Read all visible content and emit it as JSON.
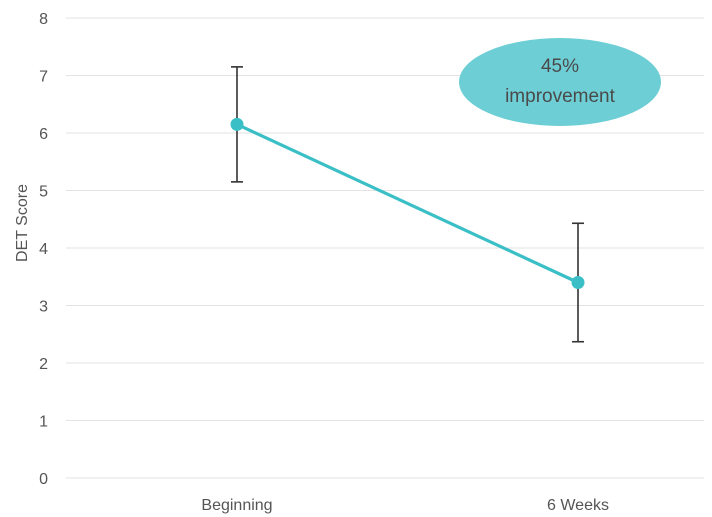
{
  "chart_data": {
    "type": "line",
    "categories": [
      "Beginning",
      "6 Weeks"
    ],
    "series": [
      {
        "values": [
          6.15,
          3.4
        ],
        "error": [
          1.0,
          1.03
        ],
        "color": "#3bbfc6"
      }
    ],
    "xlabel": "",
    "ylabel": "DET Score",
    "ylim": [
      0,
      8
    ],
    "yticks": [
      0,
      1,
      2,
      3,
      4,
      5,
      6,
      7,
      8
    ],
    "grid": true,
    "error_bar_color": "#333333",
    "annotation": {
      "line1": "45%",
      "line2": "improvement",
      "color": "#6dcfd5"
    }
  }
}
